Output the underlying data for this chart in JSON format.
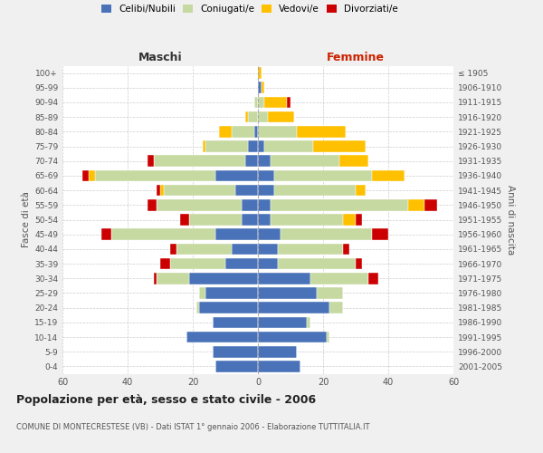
{
  "age_groups": [
    "0-4",
    "5-9",
    "10-14",
    "15-19",
    "20-24",
    "25-29",
    "30-34",
    "35-39",
    "40-44",
    "45-49",
    "50-54",
    "55-59",
    "60-64",
    "65-69",
    "70-74",
    "75-79",
    "80-84",
    "85-89",
    "90-94",
    "95-99",
    "100+"
  ],
  "birth_years": [
    "2001-2005",
    "1996-2000",
    "1991-1995",
    "1986-1990",
    "1981-1985",
    "1976-1980",
    "1971-1975",
    "1966-1970",
    "1961-1965",
    "1956-1960",
    "1951-1955",
    "1946-1950",
    "1941-1945",
    "1936-1940",
    "1931-1935",
    "1926-1930",
    "1921-1925",
    "1916-1920",
    "1911-1915",
    "1906-1910",
    "≤ 1905"
  ],
  "colors": {
    "celibe": "#4a72b8",
    "coniugato": "#c5d9a0",
    "vedovo": "#ffc000",
    "divorziato": "#cc0000"
  },
  "maschi": {
    "celibe": [
      13,
      14,
      22,
      14,
      18,
      16,
      21,
      10,
      8,
      13,
      5,
      5,
      7,
      13,
      4,
      3,
      1,
      0,
      0,
      0,
      0
    ],
    "coniugato": [
      0,
      0,
      0,
      0,
      1,
      2,
      10,
      17,
      17,
      32,
      16,
      26,
      22,
      37,
      28,
      13,
      7,
      3,
      1,
      0,
      0
    ],
    "vedovo": [
      0,
      0,
      0,
      0,
      0,
      0,
      0,
      0,
      0,
      0,
      0,
      0,
      1,
      2,
      0,
      1,
      4,
      1,
      0,
      0,
      0
    ],
    "divorziato": [
      0,
      0,
      0,
      0,
      0,
      0,
      1,
      3,
      2,
      3,
      3,
      3,
      1,
      2,
      2,
      0,
      0,
      0,
      0,
      0,
      0
    ]
  },
  "femmine": {
    "nubile": [
      13,
      12,
      21,
      15,
      22,
      18,
      16,
      6,
      6,
      7,
      4,
      4,
      5,
      5,
      4,
      2,
      0,
      0,
      0,
      1,
      0
    ],
    "coniugata": [
      0,
      0,
      1,
      1,
      4,
      8,
      18,
      24,
      20,
      28,
      22,
      42,
      25,
      30,
      21,
      15,
      12,
      3,
      2,
      0,
      0
    ],
    "vedova": [
      0,
      0,
      0,
      0,
      0,
      0,
      0,
      0,
      0,
      0,
      4,
      5,
      3,
      10,
      9,
      16,
      15,
      8,
      7,
      1,
      1
    ],
    "divorziata": [
      0,
      0,
      0,
      0,
      0,
      0,
      3,
      2,
      2,
      5,
      2,
      4,
      0,
      0,
      0,
      0,
      0,
      0,
      1,
      0,
      0
    ]
  },
  "title": "Popolazione per età, sesso e stato civile - 2006",
  "subtitle": "COMUNE DI MONTECRESTESE (VB) - Dati ISTAT 1° gennaio 2006 - Elaborazione TUTTITALIA.IT",
  "xlabel_left": "Maschi",
  "xlabel_right": "Femmine",
  "ylabel_left": "Fasce di età",
  "ylabel_right": "Anni di nascita",
  "xlim": 60,
  "bg_color": "#f0f0f0",
  "plot_bg": "#ffffff",
  "grid_color": "#cccccc"
}
